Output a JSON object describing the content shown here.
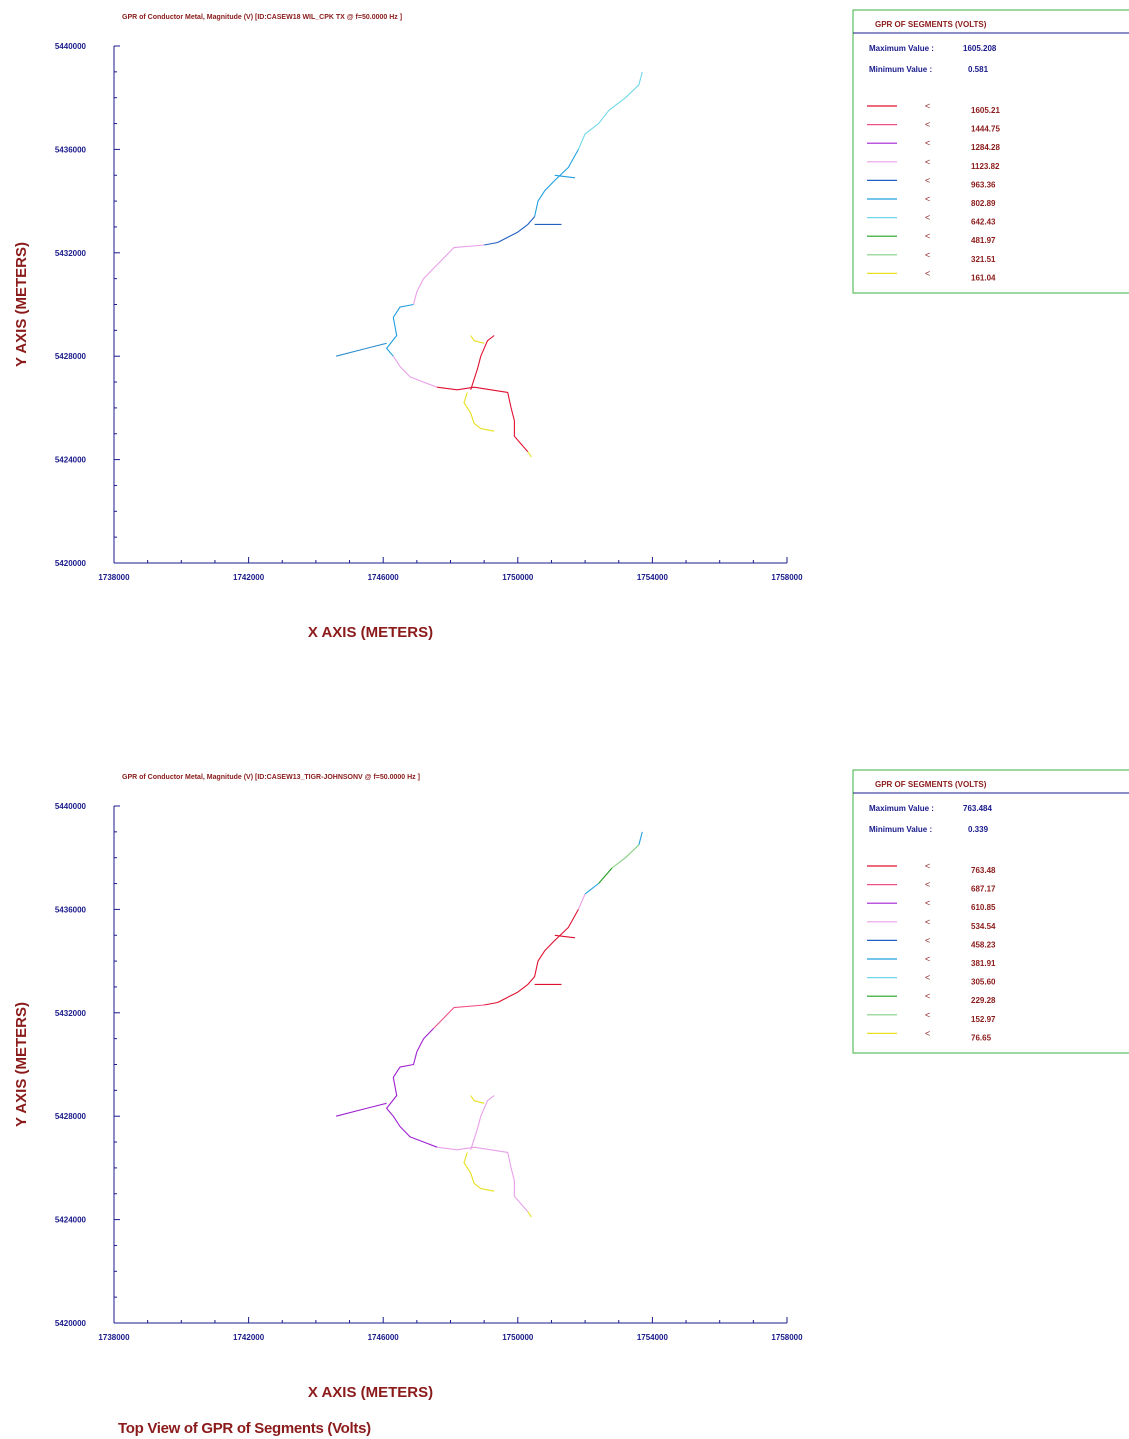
{
  "caption": "Top View of GPR of Segments (Volts)",
  "axis_colors": {
    "axis": "#1a1a8c",
    "label": "#8b1a1a",
    "legend_border": "#3cb043"
  },
  "chart_data": [
    {
      "type": "line",
      "title": "GPR of Conductor Metal, Magnitude (V) [ID:CASEW18 WIL_CPK TX @ f=50.0000 Hz ]",
      "xlabel": "X AXIS  (METERS)",
      "ylabel": "Y AXIS  (METERS)",
      "xlim": [
        1738000,
        1758000
      ],
      "ylim": [
        5420000,
        5440000
      ],
      "xticks": [
        "1738000",
        "1742000",
        "1746000",
        "1750000",
        "1754000",
        "1758000"
      ],
      "yticks": [
        "5420000",
        "5424000",
        "5428000",
        "5432000",
        "5436000",
        "5440000"
      ],
      "grid": false,
      "legend": {
        "placement": "right",
        "title": "GPR OF SEGMENTS (VOLTS)",
        "max_label": "Maximum Value :",
        "max_value": "1605.208",
        "min_label": "Minimum Value :",
        "min_value": "0.581",
        "symbol": "<",
        "entries": [
          {
            "color": "#e0102f",
            "value": "1605.21"
          },
          {
            "color": "#f0508a",
            "value": "1444.75"
          },
          {
            "color": "#a020d0",
            "value": "1284.28"
          },
          {
            "color": "#e8a0e8",
            "value": "1123.82"
          },
          {
            "color": "#2060c0",
            "value": "963.36"
          },
          {
            "color": "#20a0e0",
            "value": "802.89"
          },
          {
            "color": "#70d8e8",
            "value": "642.43"
          },
          {
            "color": "#20a020",
            "value": "481.97"
          },
          {
            "color": "#80d080",
            "value": "321.51"
          },
          {
            "color": "#e8e020",
            "value": "161.04"
          }
        ]
      },
      "series": [
        {
          "color": "#70d8e8",
          "points": [
            [
              1753700,
              5439000
            ],
            [
              1753600,
              5438500
            ],
            [
              1753200,
              5438000
            ],
            [
              1752700,
              5437500
            ],
            [
              1752400,
              5437000
            ],
            [
              1752000,
              5436600
            ],
            [
              1751800,
              5436000
            ]
          ]
        },
        {
          "color": "#20a0e0",
          "points": [
            [
              1751800,
              5436000
            ],
            [
              1751500,
              5435300
            ],
            [
              1751100,
              5434800
            ],
            [
              1750800,
              5434400
            ],
            [
              1750600,
              5434000
            ],
            [
              1750500,
              5433400
            ]
          ]
        },
        {
          "color": "#20a0e0",
          "points": [
            [
              1751100,
              5435000
            ],
            [
              1751700,
              5434900
            ]
          ]
        },
        {
          "color": "#2060c0",
          "points": [
            [
              1750500,
              5433400
            ],
            [
              1750300,
              5433100
            ],
            [
              1750000,
              5432800
            ],
            [
              1749400,
              5432400
            ],
            [
              1749000,
              5432300
            ]
          ]
        },
        {
          "color": "#2060c0",
          "points": [
            [
              1750500,
              5433100
            ],
            [
              1751300,
              5433100
            ]
          ]
        },
        {
          "color": "#e8a0e8",
          "points": [
            [
              1749000,
              5432300
            ],
            [
              1748100,
              5432200
            ],
            [
              1747800,
              5431800
            ],
            [
              1747500,
              5431400
            ],
            [
              1747200,
              5431000
            ],
            [
              1747000,
              5430500
            ],
            [
              1746900,
              5430000
            ]
          ]
        },
        {
          "color": "#20a0e0",
          "points": [
            [
              1746900,
              5430000
            ],
            [
              1746500,
              5429900
            ],
            [
              1746300,
              5429500
            ],
            [
              1746400,
              5428800
            ],
            [
              1746100,
              5428300
            ],
            [
              1746300,
              5428000
            ]
          ]
        },
        {
          "color": "#2d8fd0",
          "points": [
            [
              1746100,
              5428500
            ],
            [
              1745500,
              5428300
            ],
            [
              1744600,
              5428000
            ]
          ]
        },
        {
          "color": "#e8a0e8",
          "points": [
            [
              1746300,
              5428000
            ],
            [
              1746500,
              5427600
            ],
            [
              1746800,
              5427200
            ],
            [
              1747200,
              5427000
            ],
            [
              1747600,
              5426800
            ]
          ]
        },
        {
          "color": "#e0102f",
          "points": [
            [
              1747600,
              5426800
            ],
            [
              1748200,
              5426700
            ],
            [
              1748700,
              5426800
            ],
            [
              1749200,
              5426700
            ],
            [
              1749700,
              5426600
            ],
            [
              1749800,
              5426000
            ],
            [
              1749900,
              5425500
            ],
            [
              1749900,
              5424900
            ],
            [
              1750100,
              5424600
            ],
            [
              1750300,
              5424300
            ]
          ]
        },
        {
          "color": "#e0102f",
          "points": [
            [
              1748600,
              5426700
            ],
            [
              1748800,
              5427500
            ],
            [
              1748900,
              5428000
            ],
            [
              1749100,
              5428600
            ],
            [
              1749300,
              5428800
            ]
          ]
        },
        {
          "color": "#e8e020",
          "points": [
            [
              1748500,
              5426600
            ],
            [
              1748400,
              5426200
            ],
            [
              1748600,
              5425800
            ],
            [
              1748700,
              5425400
            ],
            [
              1748900,
              5425200
            ],
            [
              1749300,
              5425100
            ]
          ]
        },
        {
          "color": "#e8e020",
          "points": [
            [
              1748600,
              5428800
            ],
            [
              1748700,
              5428600
            ],
            [
              1749000,
              5428500
            ]
          ]
        },
        {
          "color": "#e8e020",
          "points": [
            [
              1750300,
              5424300
            ],
            [
              1750400,
              5424100
            ]
          ]
        }
      ]
    },
    {
      "type": "line",
      "title": "GPR of Conductor Metal, Magnitude (V) [ID:CASEW13_TIGR-JOHNSONV @ f=50.0000 Hz ]",
      "xlabel": "X AXIS  (METERS)",
      "ylabel": "Y AXIS  (METERS)",
      "xlim": [
        1738000,
        1758000
      ],
      "ylim": [
        5420000,
        5440000
      ],
      "xticks": [
        "1738000",
        "1742000",
        "1746000",
        "1750000",
        "1754000",
        "1758000"
      ],
      "yticks": [
        "5420000",
        "5424000",
        "5428000",
        "5432000",
        "5436000",
        "5440000"
      ],
      "grid": false,
      "legend": {
        "placement": "right",
        "title": "GPR OF SEGMENTS (VOLTS)",
        "max_label": "Maximum Value :",
        "max_value": "763.484",
        "min_label": "Minimum Value :",
        "min_value": "0.339",
        "symbol": "<",
        "entries": [
          {
            "color": "#e0102f",
            "value": "763.48"
          },
          {
            "color": "#f0508a",
            "value": "687.17"
          },
          {
            "color": "#a020d0",
            "value": "610.85"
          },
          {
            "color": "#e8a0e8",
            "value": "534.54"
          },
          {
            "color": "#2060c0",
            "value": "458.23"
          },
          {
            "color": "#20a0e0",
            "value": "381.91"
          },
          {
            "color": "#70d8e8",
            "value": "305.60"
          },
          {
            "color": "#20a020",
            "value": "229.28"
          },
          {
            "color": "#80d080",
            "value": "152.97"
          },
          {
            "color": "#e8e020",
            "value": "76.65"
          }
        ]
      },
      "series": [
        {
          "color": "#20a0e0",
          "points": [
            [
              1753700,
              5439000
            ],
            [
              1753600,
              5438500
            ]
          ]
        },
        {
          "color": "#80d080",
          "points": [
            [
              1753600,
              5438500
            ],
            [
              1753200,
              5438000
            ],
            [
              1752800,
              5437600
            ]
          ]
        },
        {
          "color": "#20a020",
          "points": [
            [
              1752800,
              5437600
            ],
            [
              1752400,
              5437000
            ]
          ]
        },
        {
          "color": "#20a0e0",
          "points": [
            [
              1752400,
              5437000
            ],
            [
              1752000,
              5436600
            ]
          ]
        },
        {
          "color": "#e8a0e8",
          "points": [
            [
              1752000,
              5436600
            ],
            [
              1751800,
              5436000
            ]
          ]
        },
        {
          "color": "#e0102f",
          "points": [
            [
              1751800,
              5436000
            ],
            [
              1751500,
              5435300
            ],
            [
              1751100,
              5434800
            ],
            [
              1750800,
              5434400
            ],
            [
              1750600,
              5434000
            ],
            [
              1750500,
              5433400
            ],
            [
              1750300,
              5433100
            ],
            [
              1750000,
              5432800
            ],
            [
              1749400,
              5432400
            ],
            [
              1749000,
              5432300
            ]
          ]
        },
        {
          "color": "#e0102f",
          "points": [
            [
              1751100,
              5435000
            ],
            [
              1751700,
              5434900
            ]
          ]
        },
        {
          "color": "#e0102f",
          "points": [
            [
              1750500,
              5433100
            ],
            [
              1751300,
              5433100
            ]
          ]
        },
        {
          "color": "#f0508a",
          "points": [
            [
              1749000,
              5432300
            ],
            [
              1748100,
              5432200
            ],
            [
              1747800,
              5431800
            ],
            [
              1747500,
              5431400
            ]
          ]
        },
        {
          "color": "#a020d0",
          "points": [
            [
              1747500,
              5431400
            ],
            [
              1747200,
              5431000
            ],
            [
              1747000,
              5430500
            ],
            [
              1746900,
              5430000
            ],
            [
              1746500,
              5429900
            ],
            [
              1746300,
              5429500
            ],
            [
              1746400,
              5428800
            ],
            [
              1746100,
              5428300
            ],
            [
              1746300,
              5428000
            ],
            [
              1746500,
              5427600
            ],
            [
              1746800,
              5427200
            ],
            [
              1747200,
              5427000
            ],
            [
              1747600,
              5426800
            ]
          ]
        },
        {
          "color": "#a020d0",
          "points": [
            [
              1746100,
              5428500
            ],
            [
              1745500,
              5428300
            ],
            [
              1744600,
              5428000
            ]
          ]
        },
        {
          "color": "#e8a0e8",
          "points": [
            [
              1747600,
              5426800
            ],
            [
              1748200,
              5426700
            ],
            [
              1748700,
              5426800
            ],
            [
              1749200,
              5426700
            ],
            [
              1749700,
              5426600
            ],
            [
              1749800,
              5426000
            ],
            [
              1749900,
              5425500
            ],
            [
              1749900,
              5424900
            ],
            [
              1750100,
              5424600
            ],
            [
              1750300,
              5424300
            ]
          ]
        },
        {
          "color": "#e8a0e8",
          "points": [
            [
              1748600,
              5426700
            ],
            [
              1748800,
              5427500
            ],
            [
              1748900,
              5428000
            ],
            [
              1749100,
              5428600
            ],
            [
              1749300,
              5428800
            ]
          ]
        },
        {
          "color": "#e8e020",
          "points": [
            [
              1748500,
              5426600
            ],
            [
              1748400,
              5426200
            ],
            [
              1748600,
              5425800
            ],
            [
              1748700,
              5425400
            ],
            [
              1748900,
              5425200
            ],
            [
              1749300,
              5425100
            ]
          ]
        },
        {
          "color": "#e8e020",
          "points": [
            [
              1748600,
              5428800
            ],
            [
              1748700,
              5428600
            ],
            [
              1749000,
              5428500
            ]
          ]
        },
        {
          "color": "#e8e020",
          "points": [
            [
              1750300,
              5424300
            ],
            [
              1750400,
              5424100
            ]
          ]
        }
      ]
    }
  ]
}
